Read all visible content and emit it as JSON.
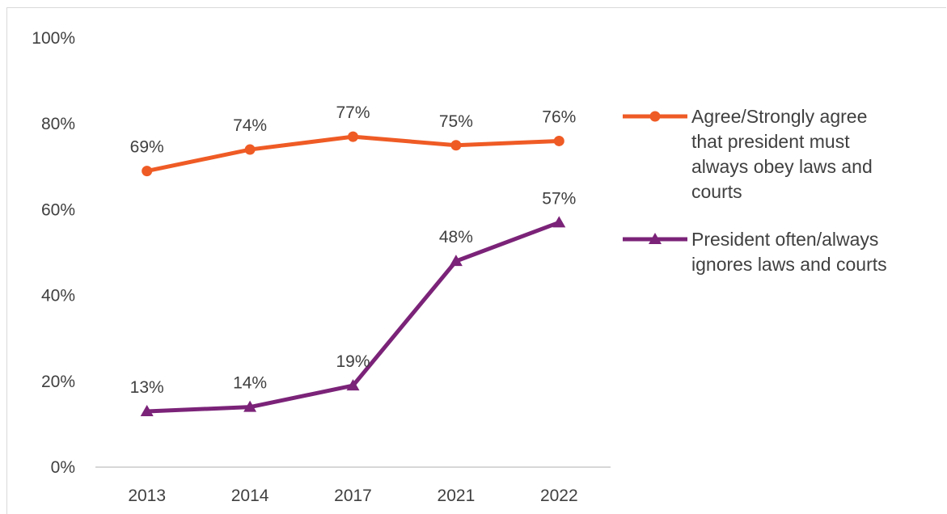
{
  "chart_data": {
    "type": "line",
    "categories": [
      "2013",
      "2014",
      "2017",
      "2021",
      "2022"
    ],
    "ylim": [
      0,
      100
    ],
    "y_ticks": [
      "0%",
      "20%",
      "40%",
      "60%",
      "80%",
      "100%"
    ],
    "y_tick_values": [
      0,
      20,
      40,
      60,
      80,
      100
    ],
    "grid": false,
    "legend_position": "right",
    "series": [
      {
        "name": "Agree/Strongly agree that president must always obey laws and courts",
        "legend_lines": [
          "Agree/Strongly agree",
          "that president must",
          "always obey laws and",
          "courts"
        ],
        "values": [
          69,
          74,
          77,
          75,
          76
        ],
        "labels": [
          "69%",
          "74%",
          "77%",
          "75%",
          "76%"
        ],
        "marker": "circle",
        "color": "#ef5b25"
      },
      {
        "name": "President often/always ignores laws and courts",
        "legend_lines": [
          "President often/always",
          "ignores laws and courts"
        ],
        "values": [
          13,
          14,
          19,
          48,
          57
        ],
        "labels": [
          "13%",
          "14%",
          "19%",
          "48%",
          "57%"
        ],
        "marker": "triangle",
        "color": "#7b2378"
      }
    ],
    "axis_color": "#bfbfbf"
  }
}
